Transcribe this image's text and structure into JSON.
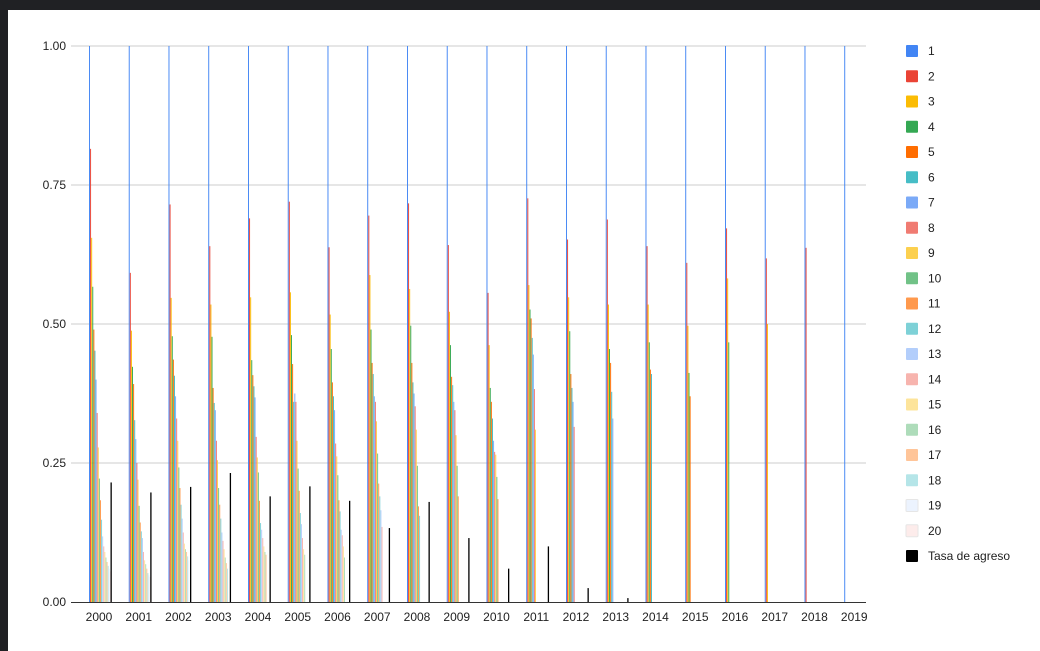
{
  "chart_data": {
    "type": "bar",
    "title": "",
    "xlabel": "",
    "ylabel": "",
    "ylim": [
      0,
      1
    ],
    "y_ticks": [
      "0.00",
      "0.25",
      "0.50",
      "0.75",
      "1.00"
    ],
    "grid": true,
    "legend_position": "right",
    "categories": [
      "2000",
      "2001",
      "2002",
      "2003",
      "2004",
      "2005",
      "2006",
      "2007",
      "2008",
      "2009",
      "2010",
      "2011",
      "2012",
      "2013",
      "2014",
      "2015",
      "2016",
      "2017",
      "2018",
      "2019"
    ],
    "series": [
      {
        "name": "1",
        "color": "#4285f4",
        "values": [
          1,
          1,
          1,
          1,
          1,
          1,
          1,
          1,
          1,
          1,
          1,
          1,
          1,
          1,
          1,
          1,
          1,
          1,
          1,
          1
        ]
      },
      {
        "name": "2",
        "color": "#ea4335",
        "values": [
          0.815,
          0.592,
          0.715,
          0.64,
          0.69,
          0.72,
          0.638,
          0.695,
          0.717,
          0.642,
          0.556,
          0.726,
          0.652,
          0.688,
          0.64,
          0.61,
          0.672,
          0.618,
          0.637,
          null
        ]
      },
      {
        "name": "3",
        "color": "#fbbc04",
        "values": [
          0.655,
          0.488,
          0.547,
          0.535,
          0.548,
          0.557,
          0.517,
          0.588,
          0.563,
          0.522,
          0.462,
          0.57,
          0.548,
          0.535,
          0.535,
          0.497,
          0.582,
          0.5,
          null,
          null
        ]
      },
      {
        "name": "4",
        "color": "#34a853",
        "values": [
          0.567,
          0.423,
          0.478,
          0.477,
          0.435,
          0.48,
          0.455,
          0.49,
          0.497,
          0.462,
          0.385,
          0.526,
          0.487,
          0.455,
          0.467,
          0.412,
          0.467,
          null,
          null,
          null
        ]
      },
      {
        "name": "5",
        "color": "#ff6d01",
        "values": [
          0.49,
          0.392,
          0.436,
          0.385,
          0.408,
          0.428,
          0.395,
          0.43,
          0.43,
          0.405,
          0.36,
          0.51,
          0.41,
          0.43,
          0.418,
          0.37,
          null,
          null,
          null,
          null
        ]
      },
      {
        "name": "6",
        "color": "#46bdc6",
        "values": [
          0.452,
          0.327,
          0.407,
          0.358,
          0.388,
          0.36,
          0.37,
          0.41,
          0.395,
          0.39,
          0.33,
          0.475,
          0.385,
          0.378,
          0.41,
          null,
          null,
          null,
          null,
          null
        ]
      },
      {
        "name": "7",
        "color": "#7baaf7",
        "values": [
          0.4,
          0.293,
          0.37,
          0.345,
          0.368,
          0.375,
          0.345,
          0.37,
          0.375,
          0.36,
          0.29,
          0.445,
          0.36,
          0.33,
          null,
          null,
          null,
          null,
          null,
          null
        ]
      },
      {
        "name": "8",
        "color": "#f07b72",
        "values": [
          0.34,
          0.25,
          0.33,
          0.29,
          0.297,
          0.36,
          0.285,
          0.36,
          0.352,
          0.345,
          0.27,
          0.383,
          0.315,
          null,
          null,
          null,
          null,
          null,
          null,
          null
        ]
      },
      {
        "name": "9",
        "color": "#fcd04f",
        "values": [
          0.278,
          0.22,
          0.29,
          0.255,
          0.26,
          0.29,
          0.262,
          0.325,
          0.31,
          0.3,
          0.265,
          0.31,
          null,
          null,
          null,
          null,
          null,
          null,
          null,
          null
        ]
      },
      {
        "name": "10",
        "color": "#71c287",
        "values": [
          0.222,
          0.173,
          0.242,
          0.205,
          0.233,
          0.24,
          0.228,
          0.267,
          0.245,
          0.245,
          0.225,
          null,
          null,
          null,
          null,
          null,
          null,
          null,
          null,
          null
        ]
      },
      {
        "name": "11",
        "color": "#ff994d",
        "values": [
          0.183,
          0.143,
          0.205,
          0.175,
          0.182,
          0.2,
          0.183,
          0.213,
          0.172,
          0.19,
          0.185,
          null,
          null,
          null,
          null,
          null,
          null,
          null,
          null,
          null
        ]
      },
      {
        "name": "12",
        "color": "#7ed1d7",
        "values": [
          0.148,
          0.127,
          0.175,
          0.15,
          0.142,
          0.16,
          0.163,
          0.19,
          0.155,
          null,
          null,
          null,
          null,
          null,
          null,
          null,
          null,
          null,
          null,
          null
        ]
      },
      {
        "name": "13",
        "color": "#b3cefb",
        "values": [
          0.118,
          0.115,
          0.15,
          0.125,
          0.13,
          0.14,
          0.13,
          0.165,
          null,
          null,
          null,
          null,
          null,
          null,
          null,
          null,
          null,
          null,
          null,
          null
        ]
      },
      {
        "name": "14",
        "color": "#f7b4ae",
        "values": [
          0.1,
          0.09,
          0.125,
          0.11,
          0.115,
          0.115,
          0.12,
          0.135,
          null,
          null,
          null,
          null,
          null,
          null,
          null,
          null,
          null,
          null,
          null,
          null
        ]
      },
      {
        "name": "15",
        "color": "#fde49b",
        "values": [
          0.09,
          0.075,
          0.105,
          0.095,
          0.1,
          0.095,
          0.1,
          null,
          null,
          null,
          null,
          null,
          null,
          null,
          null,
          null,
          null,
          null,
          null,
          null
        ]
      },
      {
        "name": "16",
        "color": "#aedcba",
        "values": [
          0.08,
          0.068,
          0.095,
          0.08,
          0.09,
          0.085,
          0.08,
          null,
          null,
          null,
          null,
          null,
          null,
          null,
          null,
          null,
          null,
          null,
          null,
          null
        ]
      },
      {
        "name": "17",
        "color": "#ffc599",
        "values": [
          0.072,
          0.06,
          0.09,
          0.07,
          0.085,
          null,
          null,
          null,
          null,
          null,
          null,
          null,
          null,
          null,
          null,
          null,
          null,
          null,
          null,
          null
        ]
      },
      {
        "name": "18",
        "color": "#b5e5e8",
        "values": [
          0.065,
          0.052,
          0.082,
          0.06,
          null,
          null,
          null,
          null,
          null,
          null,
          null,
          null,
          null,
          null,
          null,
          null,
          null,
          null,
          null,
          null
        ]
      },
      {
        "name": "19",
        "color": "#ecf3fe",
        "values": [
          0.06,
          0.048,
          0.075,
          null,
          null,
          null,
          null,
          null,
          null,
          null,
          null,
          null,
          null,
          null,
          null,
          null,
          null,
          null,
          null,
          null
        ]
      },
      {
        "name": "20",
        "color": "#fdeceb",
        "values": [
          0.055,
          0.045,
          null,
          null,
          null,
          null,
          null,
          null,
          null,
          null,
          null,
          null,
          null,
          null,
          null,
          null,
          null,
          null,
          null,
          null
        ]
      },
      {
        "name": "Tasa de agreso",
        "color": "#000000",
        "values": [
          0.215,
          0.197,
          0.207,
          0.232,
          0.19,
          0.208,
          0.182,
          0.133,
          0.18,
          0.115,
          0.06,
          0.1,
          0.025,
          0.007,
          0,
          0,
          0,
          0,
          0,
          0
        ]
      }
    ]
  }
}
